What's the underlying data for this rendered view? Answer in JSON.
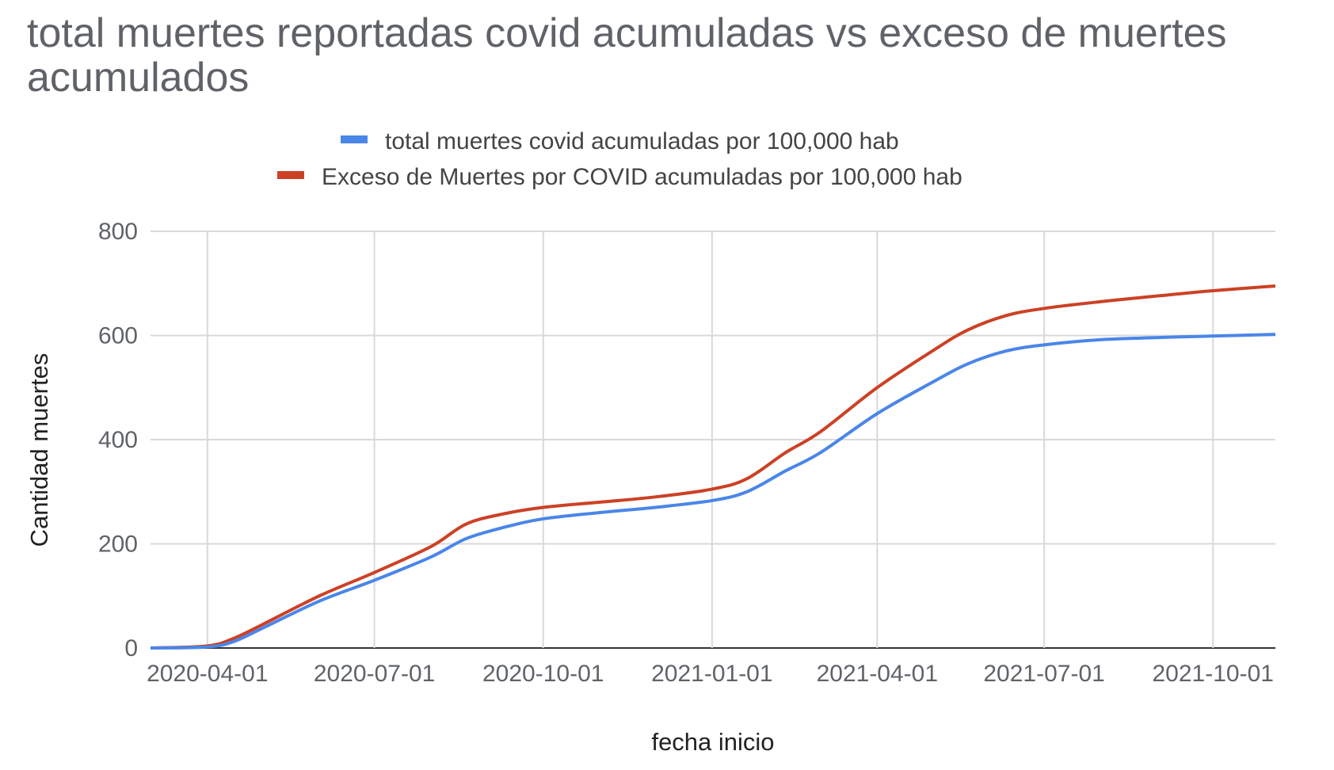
{
  "chart_data": {
    "type": "line",
    "title": "total muertes reportadas covid acumuladas vs exceso de muertes acumulados",
    "xlabel": "fecha inicio",
    "ylabel": "Cantidad muertes",
    "xlim": [
      "2020-03-01",
      "2021-11-04"
    ],
    "ylim": [
      0,
      800
    ],
    "x_ticks": [
      "2020-04-01",
      "2020-07-01",
      "2020-10-01",
      "2021-01-01",
      "2021-04-01",
      "2021-07-01",
      "2021-10-01"
    ],
    "y_ticks": [
      0,
      200,
      400,
      600,
      800
    ],
    "grid": true,
    "legend_position": "top",
    "x": [
      "2020-03-01",
      "2020-04-01",
      "2020-04-15",
      "2020-05-01",
      "2020-06-01",
      "2020-07-01",
      "2020-08-01",
      "2020-08-20",
      "2020-09-10",
      "2020-10-01",
      "2020-11-01",
      "2020-12-01",
      "2021-01-01",
      "2021-01-20",
      "2021-02-10",
      "2021-03-01",
      "2021-04-01",
      "2021-05-01",
      "2021-05-20",
      "2021-06-10",
      "2021-07-01",
      "2021-08-01",
      "2021-09-01",
      "2021-10-01",
      "2021-11-04"
    ],
    "series": [
      {
        "name": "total muertes covid acumuladas por 100,000 hab",
        "color": "#4a86e8",
        "values": [
          0,
          2,
          12,
          38,
          90,
          130,
          175,
          210,
          232,
          248,
          260,
          270,
          283,
          300,
          340,
          375,
          450,
          510,
          545,
          570,
          582,
          592,
          596,
          599,
          602
        ]
      },
      {
        "name": "Exceso de Muertes por COVID acumuladas por 100,000 hab",
        "color": "#cc4125",
        "values": [
          0,
          4,
          18,
          45,
          100,
          145,
          195,
          238,
          258,
          270,
          280,
          290,
          305,
          325,
          375,
          415,
          500,
          570,
          610,
          638,
          652,
          665,
          676,
          686,
          695
        ]
      }
    ]
  }
}
